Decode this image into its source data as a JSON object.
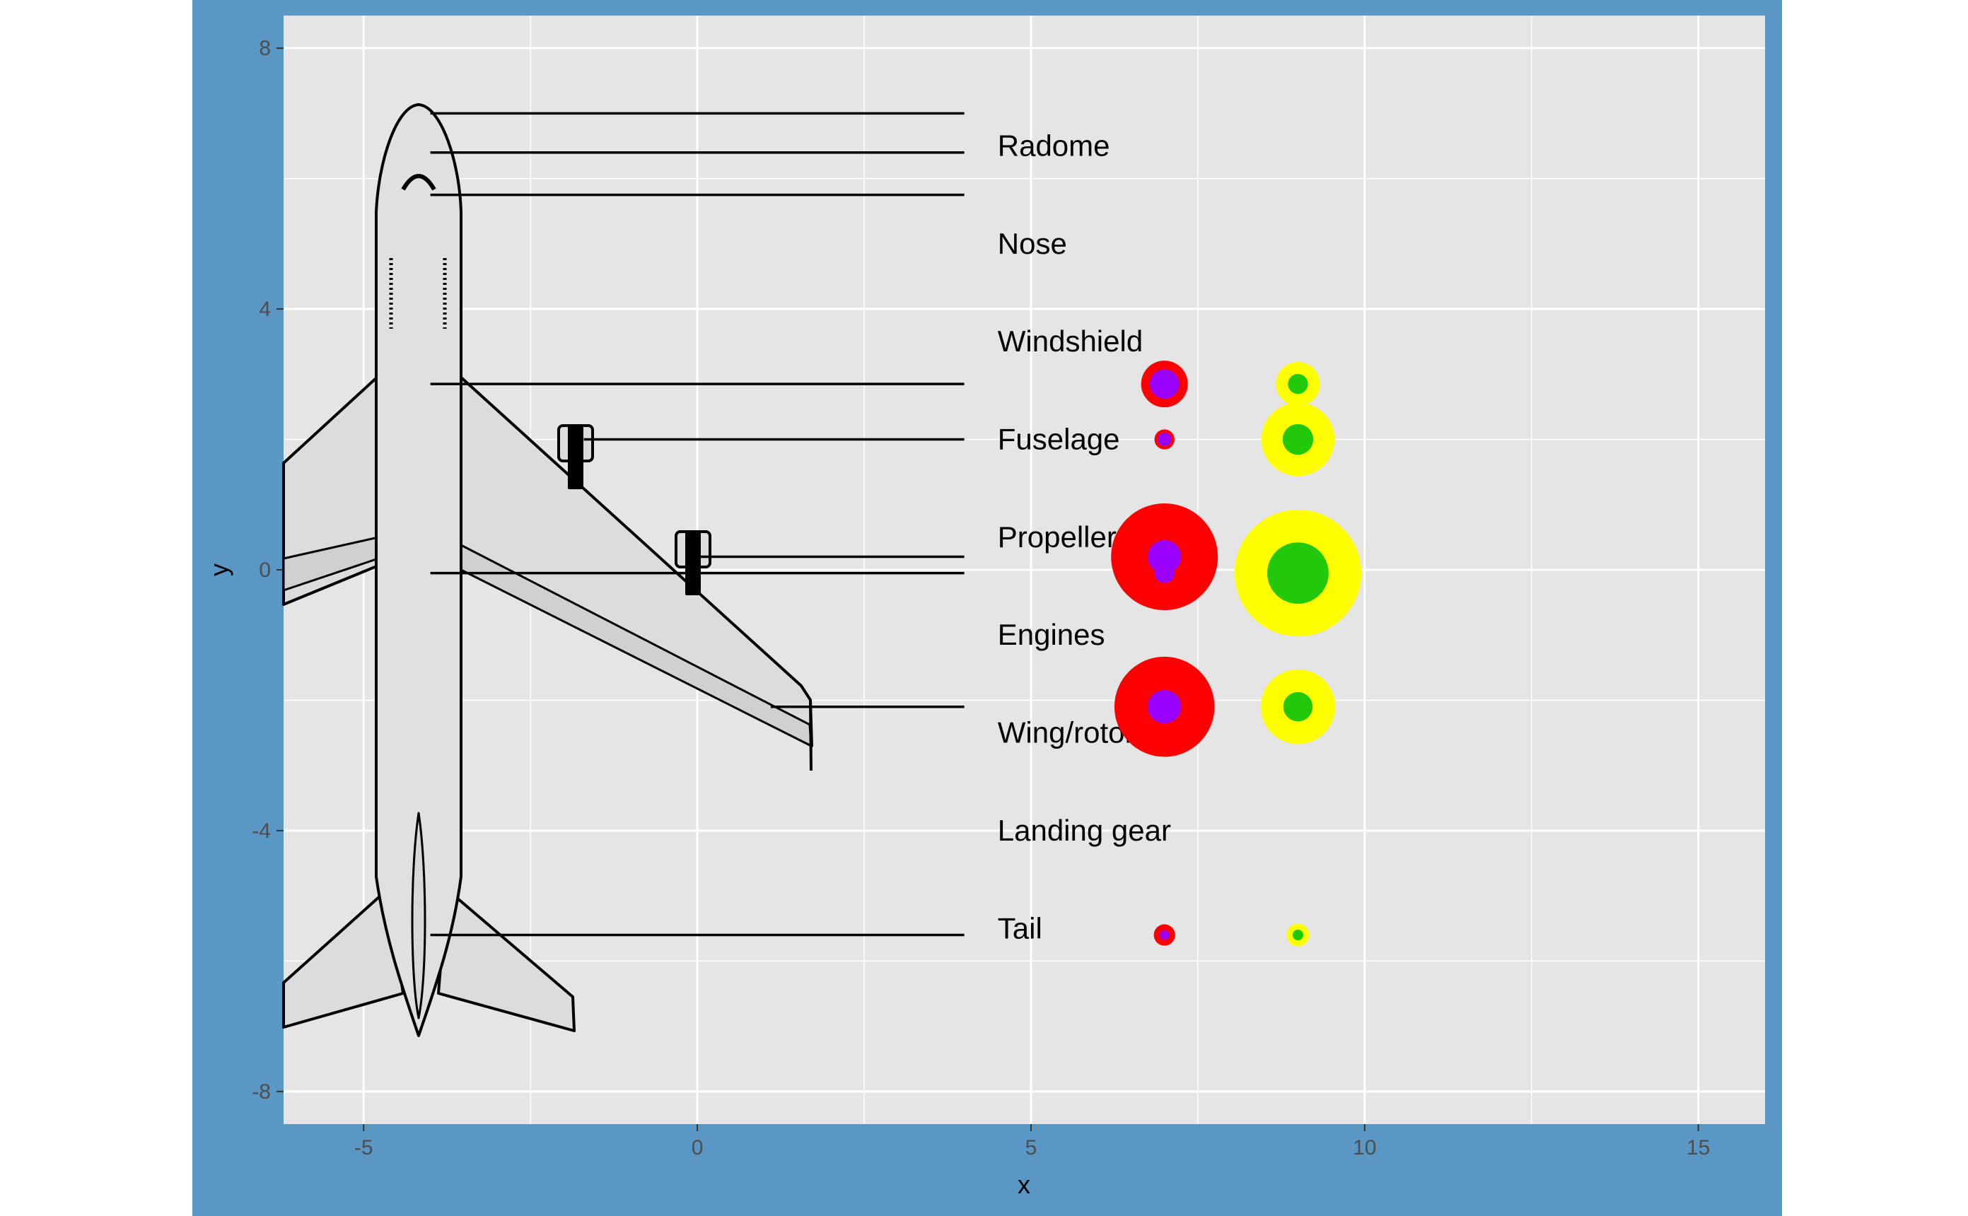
{
  "chart_data": {
    "type": "scatter",
    "title": "",
    "xlabel": "x",
    "ylabel": "y",
    "xlim": [
      -6.2,
      16.0
    ],
    "ylim": [
      -8.5,
      8.5
    ],
    "x_ticks": [
      -5,
      0,
      5,
      10,
      15
    ],
    "y_ticks": [
      -8,
      -4,
      0,
      4,
      8
    ],
    "grid": true,
    "legend": "none",
    "region_labels": [
      {
        "text": "Radome",
        "x": 4.5,
        "y": 6.5
      },
      {
        "text": "Nose",
        "x": 4.5,
        "y": 5.0
      },
      {
        "text": "Windshield",
        "x": 4.5,
        "y": 3.5
      },
      {
        "text": "Fuselage",
        "x": 4.5,
        "y": 2.0
      },
      {
        "text": "Propeller",
        "x": 4.5,
        "y": 0.5
      },
      {
        "text": "Engines",
        "x": 4.5,
        "y": -1.0
      },
      {
        "text": "Wing/rotor",
        "x": 4.5,
        "y": -2.5
      },
      {
        "text": "Landing gear",
        "x": 4.5,
        "y": -4.0
      },
      {
        "text": "Tail",
        "x": 4.5,
        "y": -5.5
      }
    ],
    "leader_lines": [
      {
        "x1": -4.0,
        "x2": 4.0,
        "y": 7.0
      },
      {
        "x1": -4.0,
        "x2": 4.0,
        "y": 6.4
      },
      {
        "x1": -4.0,
        "x2": 4.0,
        "y": 5.75
      },
      {
        "x1": -4.0,
        "x2": 4.0,
        "y": 2.85
      },
      {
        "x1": -1.7,
        "x2": 4.0,
        "y": 2.0
      },
      {
        "x1": 0.0,
        "x2": 4.0,
        "y": 0.2
      },
      {
        "x1": -4.0,
        "x2": 4.0,
        "y": -0.05
      },
      {
        "x1": 1.1,
        "x2": 4.0,
        "y": -2.1
      },
      {
        "x1": -4.0,
        "x2": 4.0,
        "y": -5.6
      }
    ],
    "series": [
      {
        "color": "#ff0000",
        "x": [
          7,
          7,
          7,
          7,
          7
        ],
        "y": [
          2.85,
          2.0,
          0.2,
          -2.1,
          -5.6
        ],
        "size": [
          0.35,
          0.15,
          0.8,
          0.75,
          0.16
        ]
      },
      {
        "color": "#9900ff",
        "x": [
          7,
          7,
          7,
          7,
          7,
          7
        ],
        "y": [
          2.85,
          2.0,
          0.2,
          -0.05,
          -2.1,
          -5.6
        ],
        "size": [
          0.22,
          0.1,
          0.25,
          0.15,
          0.25,
          0.07
        ]
      },
      {
        "color": "#ffff00",
        "x": [
          9,
          9,
          9,
          9,
          9
        ],
        "y": [
          2.85,
          2.0,
          -0.05,
          -2.1,
          -5.6
        ],
        "size": [
          0.33,
          0.55,
          0.95,
          0.56,
          0.17
        ]
      },
      {
        "color": "#22c80a",
        "x": [
          9,
          9,
          9,
          9,
          9
        ],
        "y": [
          2.85,
          2.0,
          -0.05,
          -2.1,
          -5.6
        ],
        "size": [
          0.15,
          0.23,
          0.46,
          0.22,
          0.08
        ]
      }
    ],
    "colors": {
      "panel_bg": "#5b97c5",
      "plot_bg": "#e5e5e5",
      "grid": "#ffffff"
    }
  }
}
